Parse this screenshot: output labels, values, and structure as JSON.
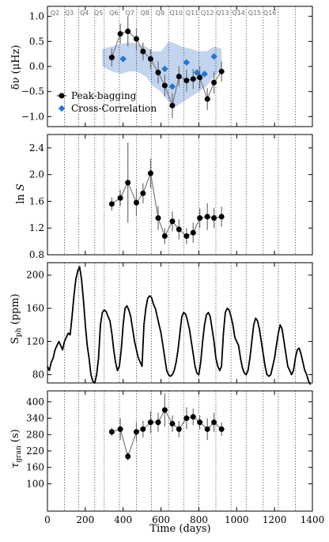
{
  "chart_data": {
    "type": "multi-panel",
    "shared_x": {
      "label": "Time (days)",
      "range": [
        0,
        1400
      ],
      "ticks": [
        0,
        200,
        400,
        600,
        800,
        1000,
        1200,
        1400
      ]
    },
    "quarters": {
      "labels": [
        "Q2",
        "Q3",
        "Q4",
        "Q5",
        "Q6",
        "Q7",
        "Q8",
        "Q9",
        "Q10",
        "Q11",
        "Q12",
        "Q13",
        "Q14",
        "Q15",
        "Q16"
      ],
      "label_x": [
        40,
        115,
        195,
        270,
        350,
        435,
        515,
        595,
        680,
        765,
        845,
        925,
        1010,
        1095,
        1175
      ],
      "boundaries": [
        90,
        165,
        250,
        300,
        380,
        470,
        550,
        640,
        720,
        800,
        890,
        970,
        1050,
        1140,
        1220,
        1310
      ]
    },
    "panels": [
      {
        "id": "freq-shift",
        "ylabel": "δν (μHz)",
        "ylim": [
          -1.2,
          1.2
        ],
        "yticks": [
          -1.0,
          -0.5,
          0.0,
          0.5,
          1.0
        ],
        "ytick_labels": [
          "−1.0",
          "−0.5",
          "0.0",
          "0.5",
          "1.0"
        ],
        "band": {
          "x": [
            290,
            340,
            390,
            430,
            470,
            520,
            560,
            600,
            640,
            680,
            720,
            760,
            800,
            840,
            880,
            920
          ],
          "upper": [
            0.35,
            0.4,
            0.45,
            0.48,
            0.46,
            0.4,
            0.3,
            0.3,
            0.5,
            0.45,
            0.38,
            0.35,
            0.3,
            0.3,
            0.4,
            0.35
          ],
          "lower": [
            0.0,
            -0.1,
            -0.15,
            -0.1,
            -0.1,
            -0.2,
            -0.4,
            -0.5,
            -0.7,
            -0.8,
            -0.7,
            -0.6,
            -0.5,
            -0.4,
            -0.2,
            -0.05
          ]
        },
        "series": [
          {
            "name": "Peak-bagging",
            "style": "black-circles-line",
            "x": [
              340,
              385,
              425,
              470,
              505,
              545,
              585,
              620,
              660,
              695,
              735,
              770,
              805,
              845,
              880,
              920
            ],
            "y": [
              0.18,
              0.65,
              0.7,
              0.55,
              0.3,
              0.15,
              -0.12,
              -0.38,
              -0.78,
              -0.2,
              -0.28,
              -0.25,
              -0.22,
              -0.65,
              -0.32,
              -0.1
            ],
            "err": [
              0.18,
              0.2,
              0.3,
              0.22,
              0.18,
              0.2,
              0.22,
              0.22,
              0.25,
              0.2,
              0.22,
              0.2,
              0.22,
              0.22,
              0.22,
              0.2
            ]
          },
          {
            "name": "Cross-Correlation",
            "style": "blue-diamonds",
            "x": [
              400,
              620,
              660,
              735,
              790,
              830,
              880
            ],
            "y": [
              0.15,
              -0.05,
              -0.4,
              0.08,
              -0.12,
              -0.15,
              0.2
            ]
          }
        ],
        "legend": "lower-left"
      },
      {
        "id": "ln-s",
        "ylabel": "ln S",
        "ylim": [
          0.8,
          2.6
        ],
        "yticks": [
          0.8,
          1.2,
          1.6,
          2.0,
          2.4
        ],
        "ytick_labels": [
          "0.8",
          "1.2",
          "1.6",
          "2.0",
          "2.4"
        ],
        "series": [
          {
            "name": "",
            "style": "black-circles-line",
            "x": [
              340,
              385,
              425,
              470,
              505,
              545,
              585,
              620,
              660,
              695,
              735,
              770,
              805,
              845,
              880,
              920
            ],
            "y": [
              1.56,
              1.65,
              1.88,
              1.58,
              1.72,
              2.02,
              1.35,
              1.08,
              1.3,
              1.18,
              1.08,
              1.13,
              1.35,
              1.37,
              1.35,
              1.37
            ],
            "err": [
              0.1,
              0.12,
              0.6,
              0.2,
              0.15,
              0.22,
              0.18,
              0.12,
              0.15,
              0.15,
              0.12,
              0.15,
              0.15,
              0.2,
              0.15,
              0.15
            ]
          }
        ]
      },
      {
        "id": "sph",
        "ylabel": "S_ph (ppm)",
        "ylim": [
          70,
          215
        ],
        "yticks": [
          80,
          120,
          160,
          200
        ],
        "ytick_labels": [
          "80",
          "120",
          "160",
          "200"
        ],
        "series": [
          {
            "name": "",
            "style": "black-line",
            "x": [
              0,
              10,
              20,
              30,
              40,
              50,
              60,
              70,
              80,
              90,
              100,
              110,
              120,
              130,
              140,
              150,
              160,
              170,
              180,
              190,
              200,
              210,
              220,
              230,
              240,
              250,
              260,
              270,
              280,
              290,
              300,
              310,
              320,
              330,
              340,
              350,
              360,
              370,
              380,
              390,
              400,
              410,
              420,
              430,
              440,
              450,
              460,
              470,
              480,
              490,
              500,
              510,
              520,
              530,
              540,
              550,
              560,
              570,
              580,
              590,
              600,
              610,
              620,
              630,
              640,
              650,
              660,
              670,
              680,
              690,
              700,
              710,
              720,
              730,
              740,
              750,
              760,
              770,
              780,
              790,
              800,
              810,
              820,
              830,
              840,
              850,
              860,
              870,
              880,
              890,
              900,
              910,
              920,
              930,
              940,
              950,
              960,
              970,
              980,
              990,
              1000,
              1010,
              1020,
              1030,
              1040,
              1050,
              1060,
              1070,
              1080,
              1090,
              1100,
              1110,
              1120,
              1130,
              1140,
              1150,
              1160,
              1170,
              1180,
              1190,
              1200,
              1210,
              1220,
              1230,
              1240,
              1250,
              1260,
              1270,
              1280,
              1290,
              1300,
              1310,
              1320,
              1330,
              1340,
              1350,
              1360,
              1370,
              1380,
              1390
            ],
            "y": [
              90,
              85,
              95,
              100,
              110,
              115,
              120,
              115,
              110,
              120,
              125,
              130,
              128,
              150,
              175,
              195,
              205,
              210,
              195,
              170,
              140,
              115,
              100,
              80,
              72,
              70,
              80,
              100,
              140,
              155,
              158,
              156,
              150,
              145,
              130,
              110,
              95,
              85,
              90,
              110,
              140,
              160,
              163,
              158,
              150,
              135,
              120,
              110,
              100,
              95,
              90,
              140,
              160,
              172,
              175,
              173,
              165,
              160,
              150,
              140,
              130,
              115,
              100,
              85,
              80,
              78,
              80,
              85,
              95,
              110,
              130,
              150,
              155,
              153,
              145,
              135,
              120,
              105,
              90,
              82,
              80,
              95,
              120,
              140,
              152,
              155,
              150,
              135,
              120,
              100,
              90,
              85,
              90,
              130,
              155,
              160,
              158,
              150,
              140,
              125,
              120,
              115,
              100,
              88,
              82,
              80,
              85,
              100,
              120,
              140,
              148,
              145,
              135,
              120,
              105,
              90,
              80,
              78,
              80,
              90,
              100,
              115,
              130,
              140,
              135,
              120,
              105,
              90,
              85,
              80,
              85,
              100,
              110,
              112,
              105,
              95,
              85,
              80,
              72,
              68
            ]
          }
        ]
      },
      {
        "id": "tau-gran",
        "ylabel": "τ_gran (s)",
        "ylim": [
          0,
          440
        ],
        "yticks": [
          100,
          160,
          220,
          280,
          340,
          400
        ],
        "ytick_labels": [
          "100",
          "160",
          "220",
          "280",
          "340",
          "400"
        ],
        "series": [
          {
            "name": "",
            "style": "black-circles-line",
            "x": [
              340,
              385,
              425,
              470,
              505,
              545,
              585,
              620,
              660,
              695,
              735,
              770,
              805,
              845,
              880,
              920
            ],
            "y": [
              290,
              300,
              200,
              290,
              300,
              325,
              325,
              370,
              320,
              300,
              340,
              345,
              325,
              300,
              325,
              300
            ],
            "err": [
              15,
              40,
              15,
              35,
              30,
              40,
              35,
              60,
              30,
              30,
              40,
              30,
              25,
              40,
              35,
              25
            ]
          }
        ]
      }
    ]
  }
}
